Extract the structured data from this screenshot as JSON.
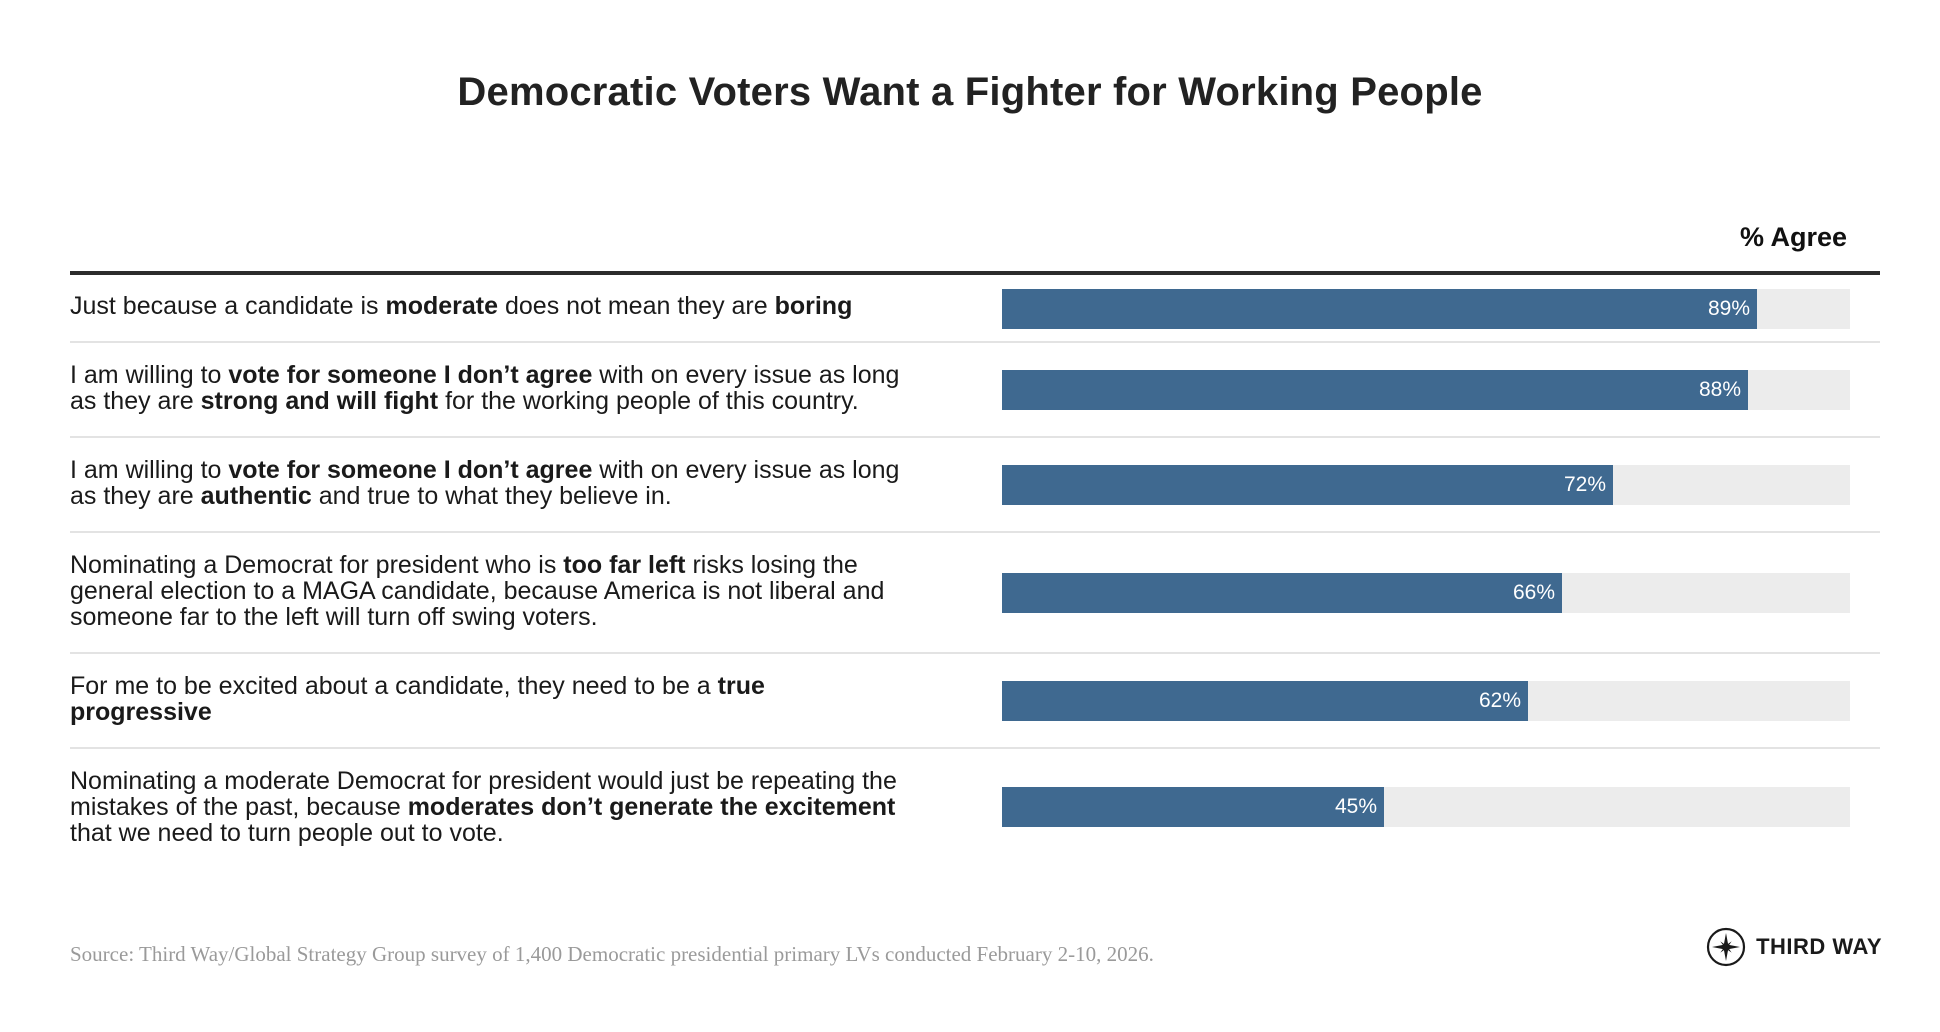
{
  "title": "Democratic Voters Want a Fighter for Working People",
  "column_header": "% Agree",
  "chart_data": {
    "type": "bar",
    "orientation": "horizontal",
    "title": "Democratic Voters Want a Fighter for Working People",
    "value_axis_label": "% Agree",
    "xlim": [
      0,
      100
    ],
    "categories": [
      "Just because a candidate is moderate does not mean they are boring",
      "I am willing to vote for someone I don’t agree with on every issue as long as they are strong and will fight for the working people of this country.",
      "I am willing to vote for someone I don’t agree with on every issue as long as they are authentic and true to what they believe in.",
      "Nominating a Democrat for president who is too far left risks losing the general election to a MAGA candidate, because America is not liberal and someone far to the left will turn off swing voters.",
      "For me to be excited about a candidate, they need to be a true progressive",
      "Nominating a moderate Democrat for president would just be repeating the mistakes of the past, because moderates don’t generate the excitement that we need to turn people out to vote."
    ],
    "values": [
      89,
      88,
      72,
      66,
      62,
      45
    ],
    "value_labels": [
      "89%",
      "88%",
      "72%",
      "66%",
      "62%",
      "45%"
    ],
    "bar_color": "#3f6990",
    "track_color": "#ececec"
  },
  "rows": [
    {
      "lines": [
        [
          {
            "t": "Just because a candidate is "
          },
          {
            "t": "moderate",
            "b": true
          },
          {
            "t": " does not mean they are "
          },
          {
            "t": "boring",
            "b": true
          }
        ]
      ]
    },
    {
      "lines": [
        [
          {
            "t": "I am willing to "
          },
          {
            "t": "vote for someone I don’t agree",
            "b": true
          },
          {
            "t": " with on every issue as long"
          }
        ],
        [
          {
            "t": "as they are "
          },
          {
            "t": "strong and will fight",
            "b": true
          },
          {
            "t": " for the working people of this country."
          }
        ]
      ]
    },
    {
      "lines": [
        [
          {
            "t": "I am willing to "
          },
          {
            "t": "vote for someone I don’t agree",
            "b": true
          },
          {
            "t": " with on every issue as long"
          }
        ],
        [
          {
            "t": "as they are "
          },
          {
            "t": "authentic",
            "b": true
          },
          {
            "t": " and true to what they believe in."
          }
        ]
      ]
    },
    {
      "lines": [
        [
          {
            "t": "Nominating a Democrat for president who is "
          },
          {
            "t": "too far left",
            "b": true
          },
          {
            "t": " risks losing the"
          }
        ],
        [
          {
            "t": "general election to a MAGA candidate, because America is not liberal and"
          }
        ],
        [
          {
            "t": "someone far to the left will turn off swing voters."
          }
        ]
      ]
    },
    {
      "lines": [
        [
          {
            "t": "For me to be excited about a candidate, they need to be a "
          },
          {
            "t": "true",
            "b": true
          }
        ],
        [
          {
            "t": "progressive",
            "b": true
          }
        ]
      ]
    },
    {
      "lines": [
        [
          {
            "t": "Nominating a moderate Democrat for president would just be repeating the"
          }
        ],
        [
          {
            "t": "mistakes of the past, because "
          },
          {
            "t": "moderates don’t generate the excitement",
            "b": true
          }
        ],
        [
          {
            "t": "that we need to turn people out to vote."
          }
        ]
      ]
    }
  ],
  "source": {
    "label": "Source:",
    "text": " Third Way/Global Strategy Group survey of 1,400 Democratic presidential primary LVs conducted February 2-10, 2026."
  },
  "logo": {
    "icon": "compass-star-icon",
    "text": "THIRD WAY"
  }
}
